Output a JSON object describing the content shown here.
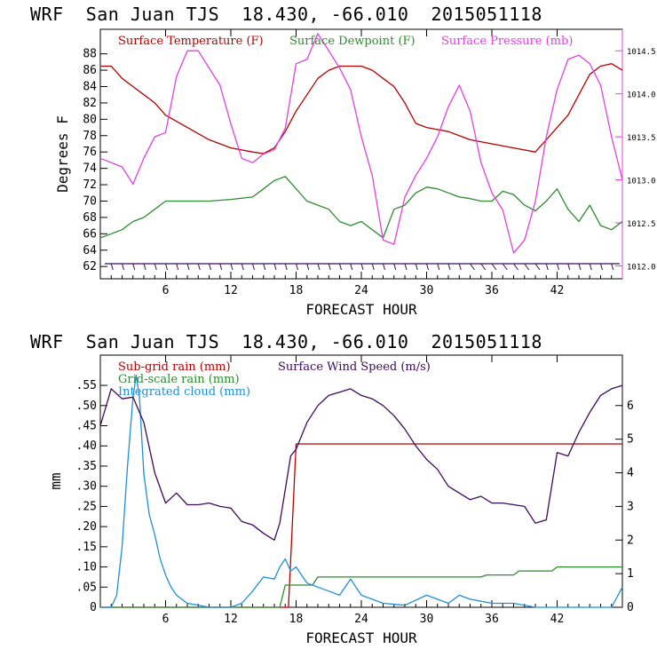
{
  "header": {
    "top_title": "WRF  San Juan TJS  18.430, -66.010  2015051118",
    "bottom_title": "WRF  San Juan TJS  18.430, -66.010  2015051118"
  },
  "colors": {
    "temperature": "#b40000",
    "dewpoint": "#2e8b2e",
    "pressure": "#e040e0",
    "wind": "#3c0a5a",
    "subgrid_rain": "#b40000",
    "grid_rain": "#2e8b2e",
    "cloud": "#1e8fd6"
  },
  "chart_data": [
    {
      "type": "line",
      "x_axis_label": "FORECAST HOUR",
      "y_axis_label": "Degrees F",
      "xlim": [
        0,
        48
      ],
      "x_ticks": [
        6,
        12,
        18,
        24,
        30,
        36,
        42
      ],
      "ylim_left": [
        60.5,
        91
      ],
      "y_ticks_left": [
        62,
        64,
        66,
        68,
        70,
        72,
        74,
        76,
        78,
        80,
        82,
        84,
        86,
        88
      ],
      "ylim_right": [
        1011.85,
        1014.75
      ],
      "y_ticks_right": [
        "1012.0",
        "1012.5",
        "1013.0",
        "1013.5",
        "1014.0",
        "1014.5"
      ],
      "grid": false,
      "legend_position": "top",
      "series": [
        {
          "name": "Surface Temperature (F)",
          "axis": "left",
          "color_key": "temperature",
          "x": [
            0,
            1,
            2,
            3,
            4,
            5,
            6,
            8,
            10,
            12,
            14,
            15,
            16,
            17,
            18,
            19,
            20,
            21,
            22,
            23,
            24,
            25,
            26,
            27,
            28,
            29,
            30,
            32,
            34,
            36,
            38,
            40,
            41,
            42,
            43,
            44,
            45,
            46,
            47,
            48
          ],
          "y": [
            86.5,
            86.5,
            85,
            84,
            83,
            82,
            80.5,
            79,
            77.5,
            76.5,
            76,
            75.8,
            76.5,
            78.5,
            81,
            83,
            85,
            86,
            86.5,
            86.5,
            86.5,
            86,
            85,
            84,
            82,
            79.5,
            79,
            78.5,
            77.5,
            77,
            76.5,
            76,
            77.5,
            79,
            80.5,
            83,
            85.5,
            86.5,
            86.8,
            86
          ]
        },
        {
          "name": "Surface Dewpoint (F)",
          "axis": "left",
          "color_key": "dewpoint",
          "x": [
            0,
            1,
            2,
            3,
            4,
            5,
            6,
            8,
            10,
            12,
            14,
            15,
            16,
            17,
            18,
            19,
            20,
            21,
            22,
            23,
            24,
            25,
            26,
            27,
            28,
            29,
            30,
            31,
            32,
            33,
            34,
            35,
            36,
            37,
            38,
            39,
            40,
            41,
            42,
            43,
            44,
            45,
            46,
            47,
            48
          ],
          "y": [
            65.5,
            66,
            66.5,
            67.5,
            68,
            69,
            70,
            70,
            70,
            70.2,
            70.5,
            71.5,
            72.5,
            73,
            71.5,
            70,
            69.5,
            69,
            67.5,
            67,
            67.5,
            66.5,
            65.5,
            69,
            69.5,
            71,
            71.7,
            71.5,
            71,
            70.5,
            70.3,
            70,
            70,
            71.2,
            70.8,
            69.5,
            68.8,
            70,
            71.5,
            69,
            67.5,
            69.5,
            67,
            66.5,
            67.5
          ]
        },
        {
          "name": "Surface Pressure (mb)",
          "axis": "right",
          "color_key": "pressure",
          "x": [
            0,
            1,
            2,
            3,
            4,
            5,
            6,
            7,
            8,
            9,
            10,
            11,
            12,
            13,
            14,
            15,
            16,
            17,
            18,
            19,
            20,
            21,
            22,
            23,
            24,
            25,
            26,
            27,
            28,
            29,
            30,
            31,
            32,
            33,
            34,
            35,
            36,
            37,
            38,
            39,
            40,
            41,
            42,
            43,
            44,
            45,
            46,
            47,
            48
          ],
          "y": [
            1013.25,
            1013.2,
            1013.15,
            1012.95,
            1013.25,
            1013.5,
            1013.55,
            1014.2,
            1014.5,
            1014.5,
            1014.3,
            1014.1,
            1013.65,
            1013.25,
            1013.2,
            1013.3,
            1013.35,
            1013.6,
            1014.35,
            1014.4,
            1014.7,
            1014.5,
            1014.3,
            1014.05,
            1013.5,
            1013.05,
            1012.3,
            1012.25,
            1012.8,
            1013.05,
            1013.25,
            1013.5,
            1013.85,
            1014.1,
            1013.8,
            1013.2,
            1012.85,
            1012.65,
            1012.15,
            1012.3,
            1012.75,
            1013.5,
            1014.05,
            1014.4,
            1014.45,
            1014.35,
            1014.1,
            1013.5,
            1013.0
          ]
        }
      ]
    },
    {
      "type": "line",
      "x_axis_label": "FORECAST HOUR",
      "y_axis_label": "mm",
      "xlim": [
        0,
        48
      ],
      "x_ticks": [
        6,
        12,
        18,
        24,
        30,
        36,
        42
      ],
      "ylim_left": [
        0,
        0.625
      ],
      "y_ticks_left": [
        "0",
        ".05",
        ".10",
        ".15",
        ".20",
        ".25",
        ".30",
        ".35",
        ".40",
        ".45",
        ".50",
        ".55"
      ],
      "ylim_right": [
        0,
        7.5
      ],
      "y_ticks_right": [
        "0",
        "1",
        "2",
        "3",
        "4",
        "5",
        "6"
      ],
      "grid": false,
      "legend_position": "top-left",
      "series": [
        {
          "name": "Sub-grid rain (mm)",
          "axis": "left",
          "color_key": "subgrid_rain",
          "x": [
            0,
            16.5,
            17.3,
            18,
            48
          ],
          "y": [
            0,
            0,
            0,
            0.405,
            0.405
          ]
        },
        {
          "name": "Grid-scale rain (mm)",
          "axis": "left",
          "color_key": "grid_rain",
          "x": [
            0,
            16.5,
            17,
            19.5,
            20,
            35,
            35.5,
            38,
            38.5,
            41.5,
            42,
            48
          ],
          "y": [
            0,
            0,
            0.055,
            0.055,
            0.075,
            0.075,
            0.08,
            0.08,
            0.09,
            0.09,
            0.1,
            0.1
          ]
        },
        {
          "name": "Integrated cloud (mm)",
          "axis": "left",
          "color_key": "cloud",
          "x": [
            0,
            1,
            1.5,
            2,
            2.5,
            3,
            3.3,
            3.6,
            4,
            4.5,
            5,
            5.5,
            6,
            6.5,
            7,
            8,
            9,
            10,
            12,
            13,
            14,
            15,
            16,
            16.5,
            17,
            17.5,
            18,
            19,
            20,
            21,
            22,
            23,
            24,
            26,
            28,
            30,
            32,
            33,
            34,
            36,
            38,
            40,
            42,
            44,
            46,
            47,
            48
          ],
          "y": [
            0,
            0,
            0.03,
            0.15,
            0.35,
            0.52,
            0.575,
            0.52,
            0.33,
            0.23,
            0.18,
            0.12,
            0.08,
            0.05,
            0.03,
            0.01,
            0.005,
            0,
            0,
            0.01,
            0.04,
            0.075,
            0.07,
            0.1,
            0.12,
            0.09,
            0.1,
            0.06,
            0.05,
            0.04,
            0.03,
            0.07,
            0.03,
            0.01,
            0.005,
            0.03,
            0.01,
            0.03,
            0.02,
            0.01,
            0.01,
            0,
            0,
            0,
            0,
            0,
            0.05
          ]
        },
        {
          "name": "Surface Wind Speed (m/s)",
          "axis": "right",
          "color_key": "wind",
          "x": [
            0,
            1,
            2,
            3,
            4,
            5,
            6,
            7,
            8,
            9,
            10,
            11,
            12,
            13,
            14,
            15,
            16,
            16.5,
            17,
            17.5,
            18,
            19,
            20,
            21,
            22,
            23,
            24,
            25,
            26,
            27,
            28,
            29,
            30,
            31,
            32,
            33,
            34,
            35,
            36,
            37,
            38,
            39,
            40,
            41,
            42,
            43,
            44,
            45,
            46,
            47,
            48
          ],
          "y": [
            5.4,
            6.5,
            6.2,
            6.25,
            5.5,
            4.0,
            3.1,
            3.4,
            3.05,
            3.05,
            3.1,
            3.0,
            2.95,
            2.55,
            2.45,
            2.2,
            2.0,
            2.5,
            3.5,
            4.5,
            4.7,
            5.5,
            6.0,
            6.3,
            6.4,
            6.5,
            6.3,
            6.2,
            6.0,
            5.7,
            5.3,
            4.8,
            4.4,
            4.1,
            3.6,
            3.4,
            3.2,
            3.3,
            3.1,
            3.1,
            3.05,
            3.0,
            2.5,
            2.6,
            4.6,
            4.5,
            5.2,
            5.8,
            6.3,
            6.5,
            6.6
          ]
        }
      ]
    }
  ]
}
